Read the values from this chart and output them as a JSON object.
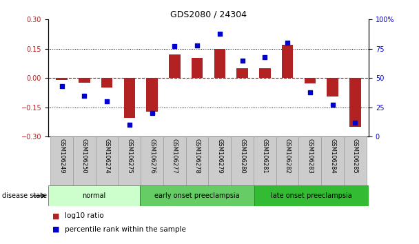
{
  "title": "GDS2080 / 24304",
  "samples": [
    "GSM106249",
    "GSM106250",
    "GSM106274",
    "GSM106275",
    "GSM106276",
    "GSM106277",
    "GSM106278",
    "GSM106279",
    "GSM106280",
    "GSM106281",
    "GSM106282",
    "GSM106283",
    "GSM106284",
    "GSM106285"
  ],
  "log10_ratio": [
    -0.01,
    -0.022,
    -0.048,
    -0.205,
    -0.172,
    0.12,
    0.103,
    0.15,
    0.05,
    0.05,
    0.17,
    -0.028,
    -0.095,
    -0.25
  ],
  "percentile_rank": [
    43,
    35,
    30,
    10,
    20,
    77,
    78,
    88,
    65,
    68,
    80,
    38,
    27,
    12
  ],
  "bar_color": "#b22222",
  "dot_color": "#0000cc",
  "dashed_color": "#cc0000",
  "ylim_left": [
    -0.3,
    0.3
  ],
  "ylim_right": [
    0,
    100
  ],
  "yticks_left": [
    -0.3,
    -0.15,
    0,
    0.15,
    0.3
  ],
  "yticks_right": [
    0,
    25,
    50,
    75,
    100
  ],
  "ytick_labels_right": [
    "0",
    "25",
    "50",
    "75",
    "100%"
  ],
  "groups": [
    {
      "label": "normal",
      "start": 0,
      "end": 4
    },
    {
      "label": "early onset preeclampsia",
      "start": 4,
      "end": 9
    },
    {
      "label": "late onset preeclampsia",
      "start": 9,
      "end": 14
    }
  ],
  "group_colors": [
    "#ccffcc",
    "#66cc66",
    "#33bb33"
  ],
  "disease_state_label": "disease state",
  "legend_items": [
    {
      "label": "log10 ratio",
      "color": "#b22222"
    },
    {
      "label": "percentile rank within the sample",
      "color": "#0000cc"
    }
  ],
  "background_color": "#ffffff",
  "tick_label_area_color": "#cccccc"
}
